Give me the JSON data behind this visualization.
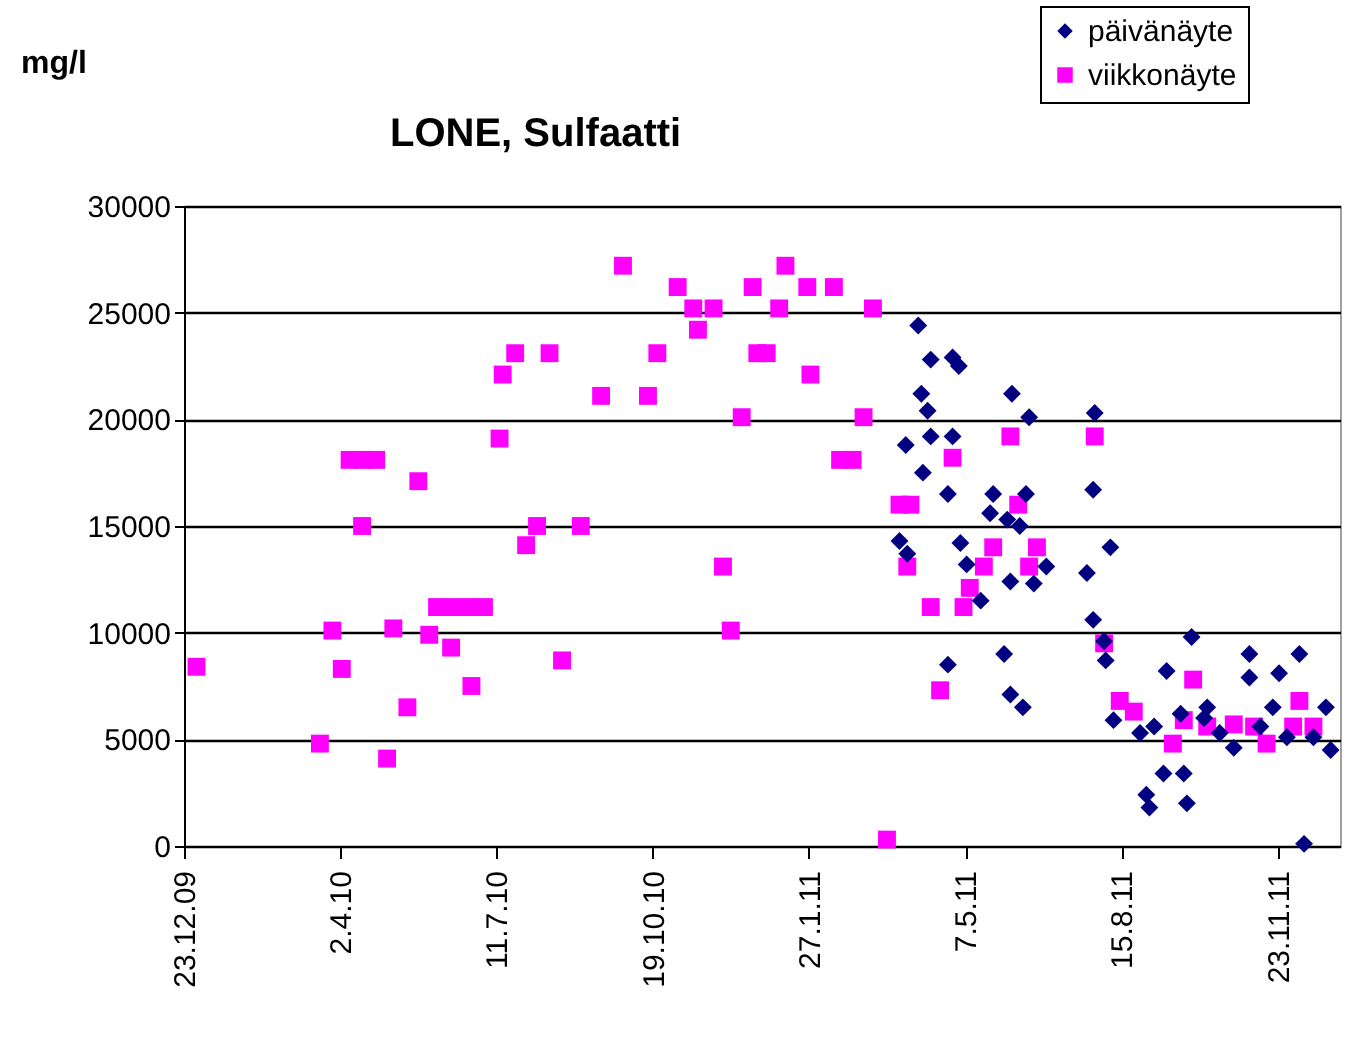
{
  "chart_data": {
    "type": "scatter",
    "title": "LONE, Sulfaatti",
    "ylabel": "mg/l",
    "xlim": [
      "2009-12-23",
      "2012-01-02"
    ],
    "xticks": [
      {
        "value": "2009-12-23",
        "label": "23.12.09"
      },
      {
        "value": "2010-04-02",
        "label": "2.4.10"
      },
      {
        "value": "2010-07-11",
        "label": "11.7.10"
      },
      {
        "value": "2010-10-19",
        "label": "19.10.10"
      },
      {
        "value": "2011-01-27",
        "label": "27.1.11"
      },
      {
        "value": "2011-05-07",
        "label": "7.5.11"
      },
      {
        "value": "2011-08-15",
        "label": "15.8.11"
      },
      {
        "value": "2011-11-23",
        "label": "23.11.11"
      }
    ],
    "ylim": [
      0,
      30000
    ],
    "yticks": [
      0,
      5000,
      10000,
      15000,
      20000,
      25000,
      30000
    ],
    "grid": "y",
    "legend": "top right",
    "series": [
      {
        "name": "päivänäyte",
        "color": "#000080",
        "marker": "diamond",
        "x": [
          "2011-04-07",
          "2011-04-15",
          "2011-04-29",
          "2011-05-03",
          "2011-04-09",
          "2011-04-13",
          "2011-06-06",
          "2011-06-17",
          "2011-07-29",
          "2011-03-30",
          "2011-04-15",
          "2011-04-29",
          "2011-04-10",
          "2011-04-26",
          "2011-05-25",
          "2011-06-15",
          "2011-05-23",
          "2011-06-03",
          "2011-06-11",
          "2011-03-26",
          "2011-03-31",
          "2011-05-04",
          "2011-05-08",
          "2011-06-05",
          "2011-06-20",
          "2011-06-28",
          "2011-05-17",
          "2011-07-28",
          "2011-08-08",
          "2011-07-24",
          "2011-07-28",
          "2011-08-04",
          "2011-08-05",
          "2011-04-26",
          "2011-06-01",
          "2011-06-05",
          "2011-06-13",
          "2011-08-10",
          "2011-08-27",
          "2011-09-05",
          "2011-09-13",
          "2011-09-29",
          "2011-09-11",
          "2011-09-24",
          "2011-08-31",
          "2011-09-02",
          "2011-09-26",
          "2011-10-09",
          "2011-10-17",
          "2011-10-26",
          "2011-11-05",
          "2011-11-05",
          "2011-12-07",
          "2011-11-24",
          "2011-11-20",
          "2011-11-12",
          "2011-12-24",
          "2011-12-27",
          "2011-12-10",
          "2011-12-16",
          "2011-11-29",
          "2011-09-22",
          "2011-10-07"
        ],
        "values": [
          24400,
          22800,
          22900,
          22500,
          21200,
          20400,
          21200,
          20100,
          20300,
          18800,
          19200,
          19200,
          17500,
          16500,
          16500,
          16500,
          15600,
          15300,
          15000,
          14300,
          13700,
          14200,
          13200,
          12400,
          12300,
          13100,
          11500,
          16700,
          14000,
          12800,
          10600,
          9600,
          8700,
          8500,
          9000,
          7100,
          6500,
          5900,
          5300,
          5600,
          8200,
          9800,
          3400,
          3400,
          2400,
          1800,
          2000,
          6500,
          5300,
          4600,
          9000,
          7900,
          9000,
          8100,
          6500,
          5600,
          6500,
          4500,
          100,
          5100,
          5100,
          6200,
          6000
        ]
      },
      {
        "name": "viikkonäyte",
        "color": "#ff00ff",
        "marker": "square",
        "x": [
          "2009-12-31",
          "2010-03-20",
          "2010-03-28",
          "2010-04-03",
          "2010-04-08",
          "2010-04-17",
          "2010-04-25",
          "2010-04-16",
          "2010-05-02",
          "2010-05-06",
          "2010-05-15",
          "2010-05-22",
          "2010-05-29",
          "2010-06-03",
          "2010-06-13",
          "2010-06-24",
          "2010-07-03",
          "2010-06-12",
          "2010-06-25",
          "2010-07-13",
          "2010-07-15",
          "2010-07-23",
          "2010-07-30",
          "2010-08-06",
          "2010-08-14",
          "2010-08-22",
          "2010-09-03",
          "2010-09-16",
          "2010-09-30",
          "2010-10-16",
          "2010-10-22",
          "2010-11-04",
          "2010-11-14",
          "2010-11-27",
          "2010-11-17",
          "2010-12-03",
          "2010-12-15",
          "2010-12-08",
          "2010-12-22",
          "2010-12-25",
          "2011-01-12",
          "2011-01-08",
          "2011-01-26",
          "2011-02-12",
          "2010-12-31",
          "2011-01-28",
          "2011-03-09",
          "2011-03-03",
          "2011-02-16",
          "2011-02-24",
          "2011-03-18",
          "2011-03-26",
          "2011-04-02",
          "2011-03-31",
          "2011-04-15",
          "2011-04-21",
          "2011-04-29",
          "2011-05-06",
          "2011-05-10",
          "2011-05-19",
          "2011-05-25",
          "2011-06-05",
          "2011-06-10",
          "2011-06-17",
          "2011-06-22",
          "2011-07-29",
          "2011-08-04",
          "2011-08-14",
          "2011-08-23",
          "2011-09-17",
          "2011-09-30",
          "2011-09-24",
          "2011-10-09",
          "2011-10-26",
          "2011-11-16",
          "2011-12-07",
          "2011-12-03",
          "2011-12-16",
          "2011-11-08"
        ],
        "values": [
          8400,
          4800,
          10100,
          8300,
          18100,
          18100,
          18100,
          15000,
          4100,
          10200,
          6500,
          17100,
          9900,
          11200,
          11200,
          11200,
          11200,
          9300,
          7500,
          19100,
          22100,
          23100,
          14100,
          15000,
          23100,
          8700,
          15000,
          21100,
          27200,
          21100,
          23100,
          26200,
          25200,
          25200,
          24200,
          13100,
          20100,
          10100,
          26200,
          23100,
          27200,
          25200,
          26200,
          26200,
          23100,
          22100,
          25200,
          20100,
          18100,
          18100,
          300,
          16000,
          16000,
          13100,
          11200,
          7300,
          18200,
          11200,
          12100,
          13100,
          14000,
          19200,
          16000,
          13100,
          14000,
          19200,
          9500,
          6800,
          6300,
          4800,
          7800,
          5900,
          5600,
          5700,
          4800,
          6800,
          5600,
          5600,
          5600
        ]
      }
    ]
  }
}
